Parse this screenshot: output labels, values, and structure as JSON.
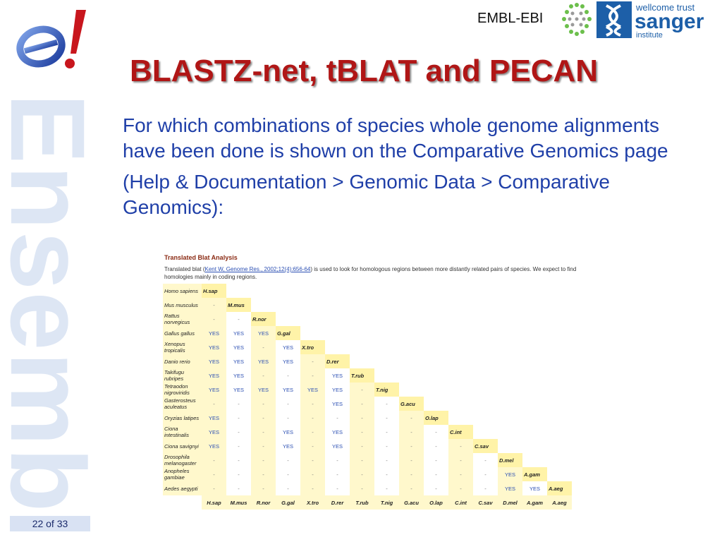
{
  "slide": {
    "side_word": "Ensembl",
    "page": "22 of 33",
    "title": "BLASTZ-net, tBLAT and PECAN",
    "embl_label": "EMBL-EBI",
    "sanger_top": "wellcome trust",
    "sanger_main": "sanger",
    "sanger_bottom": "institute",
    "body1": "For which combinations of species whole genome alignments have been done is shown on the Comparative Genomics page",
    "body2": "(Help & Documentation > Genomic Data > Comparative Genomics):"
  },
  "screenshot": {
    "heading": "Translated Blat Analysis",
    "desc_pre": "Translated blat (",
    "desc_link": "Kent W, Genome Res., 2002;12(4):656-64",
    "desc_post": ") is used to look for homologous regions between more distantly related pairs of species. We expect to find homologies mainly in coding regions.",
    "rows": [
      {
        "name": "Homo sapiens",
        "cells": [],
        "diag": "H.sap"
      },
      {
        "name": "Mus musculus",
        "cells": [
          "-"
        ],
        "diag": "M.mus"
      },
      {
        "name": "Rattus norvegicus",
        "cells": [
          "-",
          "-"
        ],
        "diag": "R.nor"
      },
      {
        "name": "Gallus gallus",
        "cells": [
          "YES",
          "YES",
          "YES"
        ],
        "diag": "G.gal"
      },
      {
        "name": "Xenopus tropicalis",
        "cells": [
          "YES",
          "YES",
          "-",
          "YES"
        ],
        "diag": "X.tro"
      },
      {
        "name": "Danio rerio",
        "cells": [
          "YES",
          "YES",
          "YES",
          "YES",
          "-"
        ],
        "diag": "D.rer"
      },
      {
        "name": "Takifugu rubripes",
        "cells": [
          "YES",
          "YES",
          "-",
          "-",
          "-",
          "YES"
        ],
        "diag": "T.rub"
      },
      {
        "name": "Tetraodon nigroviridis",
        "cells": [
          "YES",
          "YES",
          "YES",
          "YES",
          "YES",
          "YES",
          "-"
        ],
        "diag": "T.nig"
      },
      {
        "name": "Gasterosteus aculeatus",
        "cells": [
          "-",
          "-",
          "-",
          "-",
          "-",
          "YES",
          "-",
          "-"
        ],
        "diag": "G.acu"
      },
      {
        "name": "Oryzias latipes",
        "cells": [
          "YES",
          "-",
          "-",
          "-",
          "-",
          "-",
          "-",
          "-",
          "-"
        ],
        "diag": "O.lap"
      },
      {
        "name": "Ciona intestinalis",
        "cells": [
          "YES",
          "-",
          "-",
          "YES",
          "-",
          "YES",
          "-",
          "-",
          "-",
          "-"
        ],
        "diag": "C.int"
      },
      {
        "name": "Ciona savignyi",
        "cells": [
          "YES",
          "-",
          "-",
          "YES",
          "-",
          "YES",
          "-",
          "-",
          "-",
          "-",
          "-"
        ],
        "diag": "C.sav"
      },
      {
        "name": "Drosophila melanogaster",
        "cells": [
          "-",
          "-",
          "-",
          "-",
          "-",
          "-",
          "-",
          "-",
          "-",
          "-",
          "-",
          "-"
        ],
        "diag": "D.mel"
      },
      {
        "name": "Anopheles gambiae",
        "cells": [
          "-",
          "-",
          "-",
          "-",
          "-",
          "-",
          "-",
          "-",
          "-",
          "-",
          "-",
          "-",
          "YES"
        ],
        "diag": "A.gam"
      },
      {
        "name": "Aedes aegypti",
        "cells": [
          "-",
          "-",
          "-",
          "-",
          "-",
          "-",
          "-",
          "-",
          "-",
          "-",
          "-",
          "-",
          "YES",
          "YES"
        ],
        "diag": "A.aeg"
      }
    ],
    "footer": [
      "H.sap",
      "M.mus",
      "R.nor",
      "G.gal",
      "X.tro",
      "D.rer",
      "T.rub",
      "T.nig",
      "G.acu",
      "O.lap",
      "C.int",
      "C.sav",
      "D.mel",
      "A.gam",
      "A.aeg"
    ]
  },
  "colors": {
    "title": "#b01616",
    "body": "#1f3fa8",
    "cell_bg": "#fff8cc",
    "link": "#2b4fb3"
  }
}
